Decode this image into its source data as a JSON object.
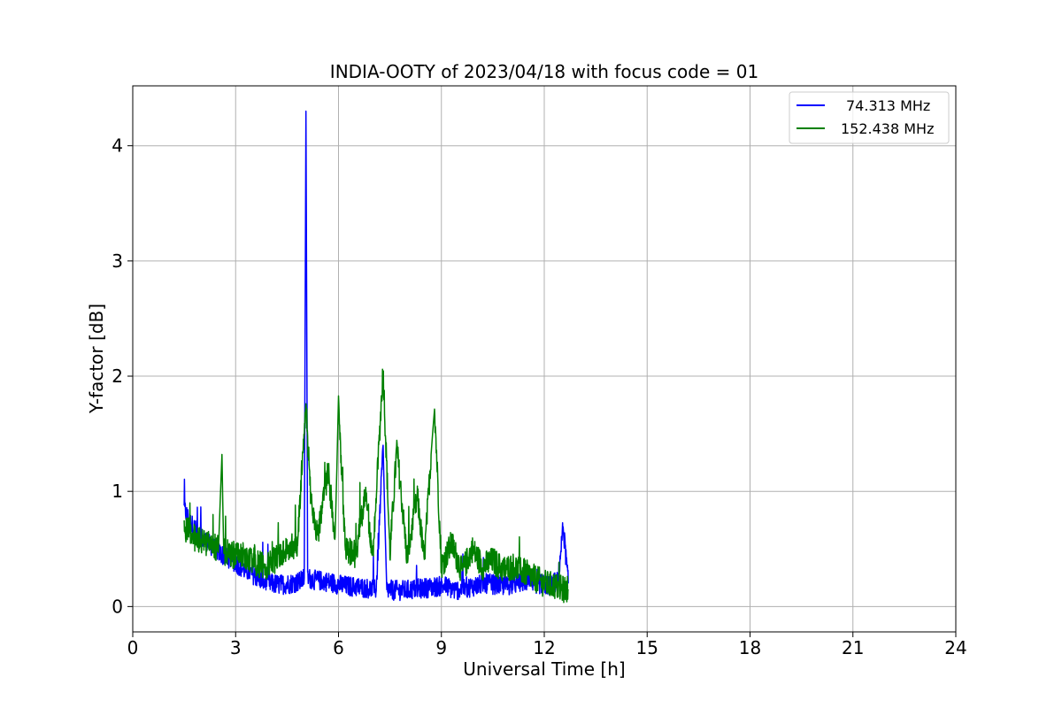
{
  "chart_data": {
    "type": "line",
    "title": "INDIA-OOTY of 2023/04/18 with focus code = 01",
    "xlabel": "Universal Time [h]",
    "ylabel": "Y-factor [dB]",
    "xlim": [
      0,
      24
    ],
    "ylim": [
      -0.22,
      4.52
    ],
    "xticks": [
      0,
      3,
      6,
      9,
      12,
      15,
      18,
      21,
      24
    ],
    "yticks": [
      0,
      1,
      2,
      3,
      4
    ],
    "grid": true,
    "legend_position": "top-right",
    "series": [
      {
        "name": "74.313 MHz",
        "color": "#0000ff",
        "x": [
          1.5,
          1.6,
          1.7,
          1.8,
          1.9,
          2.0,
          2.2,
          2.4,
          2.6,
          2.8,
          3.0,
          3.2,
          3.5,
          3.8,
          4.0,
          4.3,
          4.6,
          4.9,
          5.0,
          5.05,
          5.1,
          5.3,
          5.6,
          5.9,
          6.2,
          6.5,
          6.8,
          7.1,
          7.3,
          7.4,
          7.6,
          7.9,
          8.2,
          8.5,
          8.8,
          9.1,
          9.4,
          9.7,
          10.0,
          10.3,
          10.6,
          10.9,
          11.2,
          11.5,
          11.8,
          12.1,
          12.4,
          12.55,
          12.7
        ],
        "y": [
          0.85,
          0.78,
          0.72,
          0.68,
          0.63,
          0.6,
          0.55,
          0.5,
          0.45,
          0.42,
          0.38,
          0.33,
          0.28,
          0.22,
          0.2,
          0.19,
          0.2,
          0.22,
          0.25,
          4.3,
          0.25,
          0.23,
          0.22,
          0.2,
          0.18,
          0.17,
          0.16,
          0.15,
          1.4,
          0.15,
          0.14,
          0.14,
          0.15,
          0.16,
          0.17,
          0.18,
          0.14,
          0.16,
          0.18,
          0.2,
          0.19,
          0.18,
          0.2,
          0.22,
          0.2,
          0.18,
          0.22,
          0.7,
          0.2
        ]
      },
      {
        "name": "152.438 MHz",
        "color": "#008000",
        "x": [
          1.5,
          1.7,
          1.9,
          2.1,
          2.3,
          2.5,
          2.6,
          2.65,
          2.7,
          2.9,
          3.1,
          3.3,
          3.6,
          3.9,
          4.2,
          4.5,
          4.8,
          5.05,
          5.2,
          5.4,
          5.7,
          5.9,
          6.0,
          6.2,
          6.5,
          6.8,
          7.0,
          7.3,
          7.5,
          7.7,
          8.0,
          8.3,
          8.5,
          8.7,
          8.8,
          9.0,
          9.3,
          9.6,
          9.9,
          10.2,
          10.5,
          10.8,
          11.1,
          11.4,
          11.7,
          12.0,
          12.3,
          12.5,
          12.7
        ],
        "y": [
          0.7,
          0.62,
          0.58,
          0.55,
          0.52,
          0.5,
          1.32,
          0.5,
          0.47,
          0.45,
          0.45,
          0.43,
          0.38,
          0.35,
          0.42,
          0.48,
          0.55,
          1.75,
          0.9,
          0.62,
          1.18,
          0.6,
          1.77,
          0.5,
          0.45,
          1.0,
          0.4,
          2.07,
          0.45,
          1.38,
          0.42,
          0.95,
          0.4,
          1.32,
          1.74,
          0.35,
          0.55,
          0.3,
          0.5,
          0.35,
          0.4,
          0.32,
          0.35,
          0.3,
          0.25,
          0.2,
          0.18,
          0.15,
          0.15
        ]
      }
    ]
  }
}
